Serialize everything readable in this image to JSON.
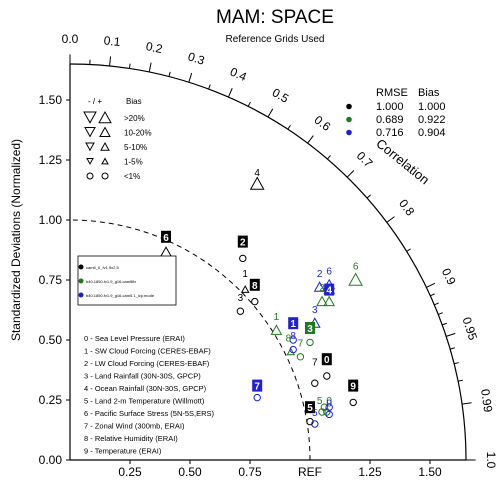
{
  "chart_data": {
    "type": "taylor",
    "title": "MAM: SPACE",
    "subtitle": "Reference Grids Used",
    "ylabel": "Standardized Deviations (Normalized)",
    "arc_label": "Correlation",
    "ref_label": "REF",
    "std_ticks": [
      "0.00",
      "0.25",
      "0.50",
      "0.75",
      "1.00",
      "1.25",
      "1.50"
    ],
    "x_ticks": [
      "0.25",
      "0.50",
      "0.75",
      "1.25",
      "1.50"
    ],
    "corr_outer_ticks": [
      "0.0",
      "0.1",
      "0.2",
      "0.3",
      "0.4",
      "0.5",
      "0.6",
      "0.7",
      "0.8",
      "0.9",
      "0.95",
      "0.99",
      "1.0"
    ],
    "std_max": 1.65,
    "ref_std": 1.0,
    "legend_stats": {
      "headers": [
        "RMSE",
        "Bias"
      ],
      "rows": [
        {
          "color": "#000000",
          "rmse": "1.000",
          "bias": "1.000"
        },
        {
          "color": "#1e7a1e",
          "rmse": "0.689",
          "bias": "0.922"
        },
        {
          "color": "#1f1fd6",
          "rmse": "0.716",
          "bias": "0.904"
        }
      ]
    },
    "bias_legend": {
      "header_sign": "- / +",
      "header_label": "Bias",
      "rows": [
        ">20%",
        "10-20%",
        "5-10%",
        "1-5%",
        "<1%"
      ]
    },
    "variables": [
      "0 - Sea Level Pressure (ERAI)",
      "1 - SW Cloud Forcing (CERES-EBAF)",
      "2 - LW Cloud Forcing (CERES-EBAF)",
      "3 - Land Rainfall (30N-30S, GPCP)",
      "4 - Ocean Rainfall (30N-30S, GPCP)",
      "5 - Land 2-m Temperature (Willmott)",
      "6 - Pacific Surface Stress (5N-5S,ERS)",
      "7 - Zonal Wind (300mb, ERAI)",
      "8 - Relative Humidity (ERAI)",
      "9 - Temperature (ERAI)"
    ],
    "case_legend": [
      "cam5_0_fv1.9x2.5",
      "b40.1850.fv1.9_g16.cam5fix",
      "b40.1850.fv1.9_g16.cam5.1_lcp.mode"
    ],
    "points": [
      {
        "case": 0,
        "var": 0,
        "x": 1.07,
        "y": 0.35,
        "shape": "circle"
      },
      {
        "case": 0,
        "var": 1,
        "x": 0.73,
        "y": 0.71,
        "shape": "tri_up_s"
      },
      {
        "case": 0,
        "var": 2,
        "x": 0.72,
        "y": 0.84,
        "shape": "circle"
      },
      {
        "case": 0,
        "var": 3,
        "x": 0.71,
        "y": 0.62,
        "shape": "circle"
      },
      {
        "case": 0,
        "var": 4,
        "x": 0.78,
        "y": 1.15,
        "shape": "tri_up_l"
      },
      {
        "case": 0,
        "var": 5,
        "x": 1.0,
        "y": 0.16,
        "shape": "circle"
      },
      {
        "case": 0,
        "var": 6,
        "x": 0.4,
        "y": 0.86,
        "shape": "tri_up_l"
      },
      {
        "case": 0,
        "var": 7,
        "x": 1.02,
        "y": 0.32,
        "shape": "circle"
      },
      {
        "case": 0,
        "var": 8,
        "x": 0.77,
        "y": 0.66,
        "shape": "circle"
      },
      {
        "case": 0,
        "var": 9,
        "x": 1.18,
        "y": 0.24,
        "shape": "circle"
      },
      {
        "case": 1,
        "var": 0,
        "x": 1.07,
        "y": 0.2,
        "shape": "circle"
      },
      {
        "case": 1,
        "var": 1,
        "x": 0.86,
        "y": 0.54,
        "shape": "tri_up_m"
      },
      {
        "case": 1,
        "var": 2,
        "x": 1.05,
        "y": 0.66,
        "shape": "tri_up_m"
      },
      {
        "case": 1,
        "var": 3,
        "x": 1.0,
        "y": 0.49,
        "shape": "circle"
      },
      {
        "case": 1,
        "var": 4,
        "x": 1.08,
        "y": 0.66,
        "shape": "tri_up_m"
      },
      {
        "case": 1,
        "var": 5,
        "x": 1.05,
        "y": 0.2,
        "shape": "circle"
      },
      {
        "case": 1,
        "var": 6,
        "x": 1.19,
        "y": 0.75,
        "shape": "tri_up_l"
      },
      {
        "case": 1,
        "var": 7,
        "x": 0.96,
        "y": 0.43,
        "shape": "circle"
      },
      {
        "case": 1,
        "var": 8,
        "x": 0.92,
        "y": 0.45,
        "shape": "tri_up_s"
      },
      {
        "case": 1,
        "var": 9,
        "x": 1.06,
        "y": 0.22,
        "shape": "circle"
      },
      {
        "case": 2,
        "var": 0,
        "x": 1.08,
        "y": 0.19,
        "shape": "circle"
      },
      {
        "case": 2,
        "var": 1,
        "x": 0.93,
        "y": 0.5,
        "shape": "circle"
      },
      {
        "case": 2,
        "var": 2,
        "x": 1.04,
        "y": 0.72,
        "shape": "tri_up_m"
      },
      {
        "case": 2,
        "var": 3,
        "x": 1.02,
        "y": 0.57,
        "shape": "tri_up_m"
      },
      {
        "case": 2,
        "var": 4,
        "x": 1.08,
        "y": 0.71,
        "shape": "tri_up_m"
      },
      {
        "case": 2,
        "var": 5,
        "x": 1.02,
        "y": 0.15,
        "shape": "circle"
      },
      {
        "case": 2,
        "var": 6,
        "x": 1.08,
        "y": 0.73,
        "shape": "tri_up_m"
      },
      {
        "case": 2,
        "var": 7,
        "x": 0.78,
        "y": 0.26,
        "shape": "circle"
      },
      {
        "case": 2,
        "var": 8,
        "x": 0.93,
        "y": 0.46,
        "shape": "circle"
      },
      {
        "case": 2,
        "var": 9,
        "x": 1.08,
        "y": 0.22,
        "shape": "circle"
      }
    ],
    "labels": [
      {
        "text": "0",
        "x": 1.07,
        "y": 0.42,
        "case": 0,
        "boxed": true
      },
      {
        "text": "1",
        "x": 0.73,
        "y": 0.78,
        "case": 0,
        "boxed": false
      },
      {
        "text": "2",
        "x": 0.72,
        "y": 0.91,
        "case": 0,
        "boxed": true
      },
      {
        "text": "3",
        "x": 0.71,
        "y": 0.68,
        "case": 0,
        "boxed": false
      },
      {
        "text": "4",
        "x": 0.78,
        "y": 1.2,
        "case": 0,
        "boxed": false
      },
      {
        "text": "5",
        "x": 1.0,
        "y": 0.22,
        "case": 0,
        "boxed": true
      },
      {
        "text": "6",
        "x": 0.4,
        "y": 0.93,
        "case": 0,
        "boxed": true
      },
      {
        "text": "7",
        "x": 1.02,
        "y": 0.41,
        "case": 0,
        "boxed": false
      },
      {
        "text": "8",
        "x": 0.77,
        "y": 0.73,
        "case": 0,
        "boxed": true
      },
      {
        "text": "9",
        "x": 1.18,
        "y": 0.31,
        "case": 0,
        "boxed": true
      },
      {
        "text": "1",
        "x": 0.86,
        "y": 0.6,
        "case": 1,
        "boxed": false
      },
      {
        "text": "2",
        "x": 1.05,
        "y": 0.72,
        "case": 1,
        "boxed": false
      },
      {
        "text": "3",
        "x": 1.0,
        "y": 0.55,
        "case": 1,
        "boxed": true
      },
      {
        "text": "4",
        "x": 1.08,
        "y": 0.71,
        "case": 1,
        "boxed": false
      },
      {
        "text": "5",
        "x": 1.04,
        "y": 0.25,
        "case": 1,
        "boxed": false
      },
      {
        "text": "6",
        "x": 1.19,
        "y": 0.81,
        "case": 1,
        "boxed": false
      },
      {
        "text": "7",
        "x": 0.96,
        "y": 0.49,
        "case": 1,
        "boxed": false
      },
      {
        "text": "8",
        "x": 0.91,
        "y": 0.51,
        "case": 1,
        "boxed": false
      },
      {
        "text": "0",
        "x": 1.08,
        "y": 0.25,
        "case": 1,
        "boxed": false
      },
      {
        "text": "1",
        "x": 0.93,
        "y": 0.57,
        "case": 2,
        "boxed": true
      },
      {
        "text": "2",
        "x": 1.04,
        "y": 0.78,
        "case": 2,
        "boxed": false
      },
      {
        "text": "3",
        "x": 1.02,
        "y": 0.63,
        "case": 2,
        "boxed": false
      },
      {
        "text": "4",
        "x": 1.08,
        "y": 0.71,
        "case": 2,
        "boxed": true
      },
      {
        "text": "5",
        "x": 1.02,
        "y": 0.2,
        "case": 2,
        "boxed": false
      },
      {
        "text": "6",
        "x": 1.08,
        "y": 0.79,
        "case": 2,
        "boxed": false
      },
      {
        "text": "7",
        "x": 0.78,
        "y": 0.31,
        "case": 2,
        "boxed": true
      },
      {
        "text": "8",
        "x": 0.93,
        "y": 0.52,
        "case": 2,
        "boxed": false
      },
      {
        "text": "0",
        "x": 1.08,
        "y": 0.24,
        "case": 2,
        "boxed": false
      }
    ],
    "colors": {
      "case0": "#000000",
      "case1": "#1e7a1e",
      "case2": "#1f1fd6"
    }
  }
}
